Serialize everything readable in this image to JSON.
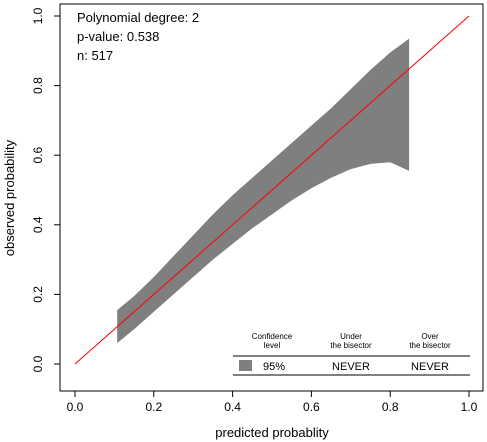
{
  "chart_data": {
    "type": "area",
    "xlabel": "predicted probablity",
    "ylabel": "observed probability",
    "xlim": [
      0.0,
      1.0
    ],
    "ylim": [
      0.0,
      1.0
    ],
    "grid": false,
    "x_ticks": [
      "0.0",
      "0.2",
      "0.4",
      "0.6",
      "0.8",
      "1.0"
    ],
    "y_ticks": [
      "0.0",
      "0.2",
      "0.4",
      "0.6",
      "0.8",
      "1.0"
    ],
    "annotations": [
      "Polynomial degree: 2",
      "p-value: 0.538",
      "n: 517"
    ],
    "series": [
      {
        "type": "band",
        "x": [
          0.107,
          0.15,
          0.2,
          0.25,
          0.3,
          0.35,
          0.4,
          0.45,
          0.5,
          0.55,
          0.6,
          0.65,
          0.7,
          0.75,
          0.8,
          0.848
        ],
        "upper": [
          0.155,
          0.195,
          0.25,
          0.31,
          0.37,
          0.43,
          0.485,
          0.535,
          0.585,
          0.635,
          0.685,
          0.735,
          0.79,
          0.845,
          0.895,
          0.935
        ],
        "lower": [
          0.06,
          0.1,
          0.15,
          0.2,
          0.25,
          0.3,
          0.345,
          0.39,
          0.43,
          0.47,
          0.505,
          0.535,
          0.56,
          0.575,
          0.58,
          0.555
        ],
        "color": "#7f7f7f"
      },
      {
        "type": "line",
        "x": [
          0.0,
          1.0
        ],
        "y": [
          0.0,
          1.0
        ],
        "color": "#ff0000"
      }
    ],
    "legend_table": {
      "headers": [
        "Confidence\nlevel",
        "Under\nthe bisector",
        "Over\nthe bisector"
      ],
      "row": {
        "level": "95%",
        "under": "NEVER",
        "over": "NEVER"
      },
      "swatch_color": "#7f7f7f"
    }
  }
}
